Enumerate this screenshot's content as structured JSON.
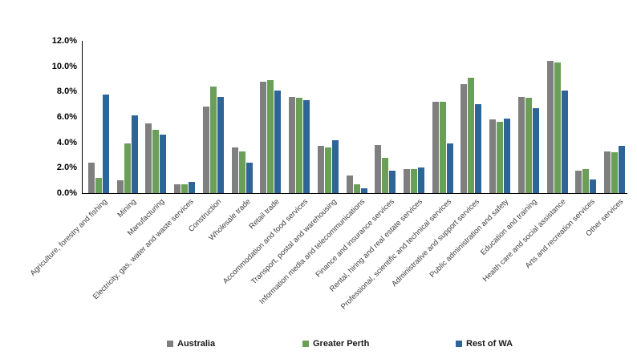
{
  "chart_data": {
    "type": "bar",
    "title": "",
    "xlabel": "",
    "ylabel": "",
    "ylim": [
      0,
      12
    ],
    "y_ticks": [
      "0.0%",
      "2.0%",
      "4.0%",
      "6.0%",
      "8.0%",
      "10.0%",
      "12.0%"
    ],
    "y_tick_values": [
      0,
      2,
      4,
      6,
      8,
      10,
      12
    ],
    "grid": false,
    "legend_position": "bottom",
    "categories": [
      "Agriculture, forestry and fishing",
      "Mining",
      "Manufacturing",
      "Electricity, gas, water and waste services",
      "Construction",
      "Wholesale trade",
      "Retail trade",
      "Accommodation and food services",
      "Transport, postal and warehousing",
      "Information media and telecommunications",
      "Finance and insurance services",
      "Rental, hiring and real estate services",
      "Professional, scientific and technical services",
      "Administrative and support services",
      "Public administration and safety",
      "Education and training",
      "Health care and social assistance",
      "Arts and recreation services",
      "Other services"
    ],
    "series": [
      {
        "name": "Australia",
        "color": "#7F7F7F",
        "values": [
          2.4,
          1.0,
          5.5,
          0.7,
          6.8,
          3.6,
          8.8,
          7.6,
          3.7,
          1.4,
          3.8,
          1.9,
          7.2,
          8.6,
          5.8,
          7.6,
          10.4,
          1.8,
          3.3
        ]
      },
      {
        "name": "Greater Perth",
        "color": "#6A9F58",
        "values": [
          1.2,
          3.9,
          5.0,
          0.7,
          8.4,
          3.3,
          8.9,
          7.5,
          3.6,
          0.7,
          2.8,
          1.9,
          7.2,
          9.1,
          5.6,
          7.5,
          10.3,
          1.9,
          3.2
        ]
      },
      {
        "name": "Rest of WA",
        "color": "#2F6496",
        "values": [
          7.8,
          6.1,
          4.6,
          0.9,
          7.6,
          2.4,
          8.1,
          7.3,
          4.2,
          0.4,
          1.8,
          2.0,
          3.9,
          7.0,
          5.9,
          6.7,
          8.1,
          1.1,
          3.7
        ]
      }
    ]
  },
  "legend": {
    "items": [
      {
        "label": "Australia",
        "color": "#7F7F7F"
      },
      {
        "label": "Greater Perth",
        "color": "#6A9F58"
      },
      {
        "label": "Rest of WA",
        "color": "#2F6496"
      }
    ]
  }
}
